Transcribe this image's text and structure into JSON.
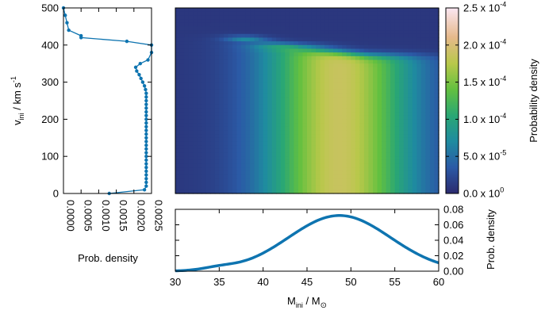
{
  "chart_data": [
    {
      "id": "vini-marginal",
      "type": "line",
      "orientation": "rotated",
      "xlabel": "Prob. density",
      "ylabel_main": "v",
      "ylabel_sub": "ini",
      "ylabel_unit": " / km s",
      "ylabel_sup": "-1",
      "xlim": [
        0,
        0.0025
      ],
      "ylim": [
        0,
        500
      ],
      "xticks": [
        "0.0000",
        "0.0005",
        "0.0010",
        "0.0015",
        "0.0020",
        "0.0025"
      ],
      "yticks": [
        "0",
        "100",
        "200",
        "300",
        "400",
        "500"
      ],
      "color": "#0e74b0",
      "points": [
        [
          0.0013,
          0
        ],
        [
          0.0023,
          10
        ],
        [
          0.00235,
          20
        ],
        [
          0.00235,
          30
        ],
        [
          0.00235,
          40
        ],
        [
          0.00235,
          50
        ],
        [
          0.00235,
          60
        ],
        [
          0.00235,
          70
        ],
        [
          0.00235,
          80
        ],
        [
          0.00235,
          90
        ],
        [
          0.00235,
          100
        ],
        [
          0.00235,
          110
        ],
        [
          0.00235,
          120
        ],
        [
          0.00235,
          130
        ],
        [
          0.00235,
          140
        ],
        [
          0.00235,
          150
        ],
        [
          0.00235,
          160
        ],
        [
          0.00235,
          170
        ],
        [
          0.00235,
          180
        ],
        [
          0.00235,
          190
        ],
        [
          0.00235,
          200
        ],
        [
          0.00235,
          210
        ],
        [
          0.00235,
          220
        ],
        [
          0.00235,
          230
        ],
        [
          0.00235,
          240
        ],
        [
          0.00235,
          250
        ],
        [
          0.00235,
          260
        ],
        [
          0.00235,
          270
        ],
        [
          0.00233,
          280
        ],
        [
          0.0023,
          290
        ],
        [
          0.00225,
          300
        ],
        [
          0.0022,
          310
        ],
        [
          0.00215,
          320
        ],
        [
          0.00208,
          330
        ],
        [
          0.00205,
          340
        ],
        [
          0.00218,
          350
        ],
        [
          0.0024,
          360
        ],
        [
          0.0025,
          380
        ],
        [
          0.0025,
          400
        ],
        [
          0.0018,
          410
        ],
        [
          0.0005,
          420
        ],
        [
          0.0005,
          425
        ],
        [
          0.00015,
          440
        ],
        [
          0.0001,
          460
        ],
        [
          5e-05,
          480
        ],
        [
          0.0,
          500
        ]
      ]
    },
    {
      "id": "heatmap",
      "type": "heatmap",
      "xlim": [
        30,
        60
      ],
      "ylim": [
        0,
        500
      ],
      "colorbar": {
        "label": "Probability density",
        "range": [
          0,
          0.00025
        ],
        "tick_mantissas": [
          "0.0",
          "5.0",
          "1.0",
          "1.5",
          "2.0",
          "2.5"
        ],
        "tick_exponents": [
          "0",
          "-5",
          "-4",
          "-4",
          "-4",
          "-4"
        ],
        "tick_values": [
          0,
          5e-05,
          0.0001,
          0.00015,
          0.0002,
          0.00025
        ],
        "stops": [
          "#2b2a6e",
          "#2b5aa6",
          "#1f8ba0",
          "#2aa774",
          "#63c040",
          "#b8c84a",
          "#e6b98a",
          "#fbe7f3"
        ]
      }
    },
    {
      "id": "mini-marginal",
      "type": "line",
      "xlabel_main": "M",
      "xlabel_sub": "ini",
      "xlabel_unit": " / M",
      "xlabel_sub2": "⊙",
      "ylabel": "Prob. density",
      "xlim": [
        30,
        60
      ],
      "ylim": [
        0,
        0.08
      ],
      "xticks": [
        "30",
        "35",
        "40",
        "45",
        "50",
        "55",
        "60"
      ],
      "yticks": [
        "0.00",
        "0.02",
        "0.04",
        "0.06",
        "0.08"
      ],
      "color": "#0e74b0",
      "mean": 48.7,
      "sigma": 5.8,
      "peak": 0.072
    }
  ]
}
